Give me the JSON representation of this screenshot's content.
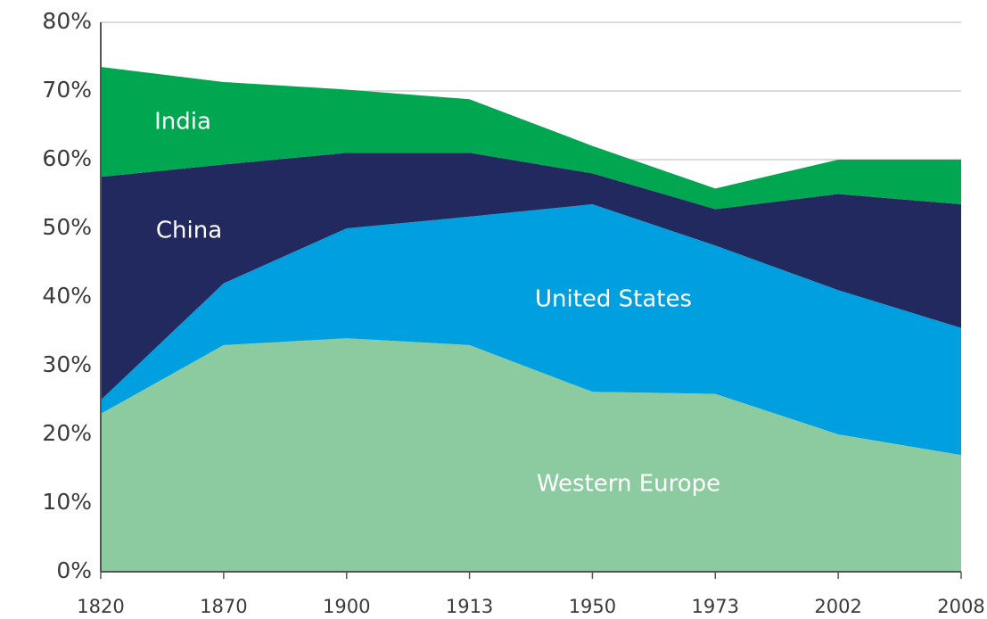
{
  "chart_data": {
    "type": "stacked_area",
    "categories": [
      "1820",
      "1870",
      "1900",
      "1913",
      "1950",
      "1973",
      "2002",
      "2008"
    ],
    "series": [
      {
        "name": "Western Europe",
        "color": "#8ccba0",
        "values": [
          23,
          33,
          34,
          33,
          26.2,
          25.9,
          20,
          17
        ]
      },
      {
        "name": "United States",
        "color": "#009fdf",
        "values": [
          2,
          9,
          16,
          18.7,
          27.3,
          21.6,
          21,
          18.5
        ]
      },
      {
        "name": "China",
        "color": "#22295e",
        "values": [
          32.5,
          17.3,
          11,
          9.3,
          4.5,
          5.3,
          14,
          18
        ]
      },
      {
        "name": "India",
        "color": "#00a650",
        "values": [
          16,
          12,
          9.2,
          7.8,
          4,
          3,
          5,
          6.5
        ]
      }
    ],
    "ylim": [
      0,
      80
    ],
    "yticks": [
      {
        "value": 0,
        "label": "0%"
      },
      {
        "value": 10,
        "label": "10%"
      },
      {
        "value": 20,
        "label": "20%"
      },
      {
        "value": 30,
        "label": "30%"
      },
      {
        "value": 40,
        "label": "40%"
      },
      {
        "value": 50,
        "label": "50%"
      },
      {
        "value": 60,
        "label": "60%"
      },
      {
        "value": 70,
        "label": "70%"
      },
      {
        "value": 80,
        "label": "80%"
      }
    ],
    "grid": true
  }
}
